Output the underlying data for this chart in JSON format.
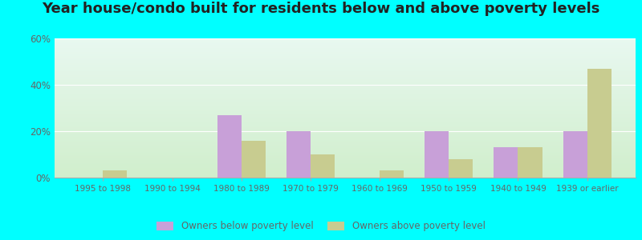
{
  "title": "Year house/condo built for residents below and above poverty levels",
  "categories": [
    "1995 to 1998",
    "1990 to 1994",
    "1980 to 1989",
    "1970 to 1979",
    "1960 to 1969",
    "1950 to 1959",
    "1940 to 1949",
    "1939 or earlier"
  ],
  "below_poverty": [
    0,
    0,
    27,
    20,
    0,
    20,
    13,
    20
  ],
  "above_poverty": [
    3,
    0,
    16,
    10,
    3,
    8,
    13,
    47
  ],
  "below_color": "#C8A0D8",
  "above_color": "#C8CC90",
  "ylim": [
    0,
    60
  ],
  "yticks": [
    0,
    20,
    40,
    60
  ],
  "ytick_labels": [
    "0%",
    "20%",
    "40%",
    "60%"
  ],
  "grad_top": "#e0f5ee",
  "grad_bottom": "#d0eecc",
  "outer_bg": "#00ffff",
  "legend_below": "Owners below poverty level",
  "legend_above": "Owners above poverty level",
  "bar_width": 0.35,
  "title_fontsize": 13,
  "grid_color": "#c8dfc0"
}
